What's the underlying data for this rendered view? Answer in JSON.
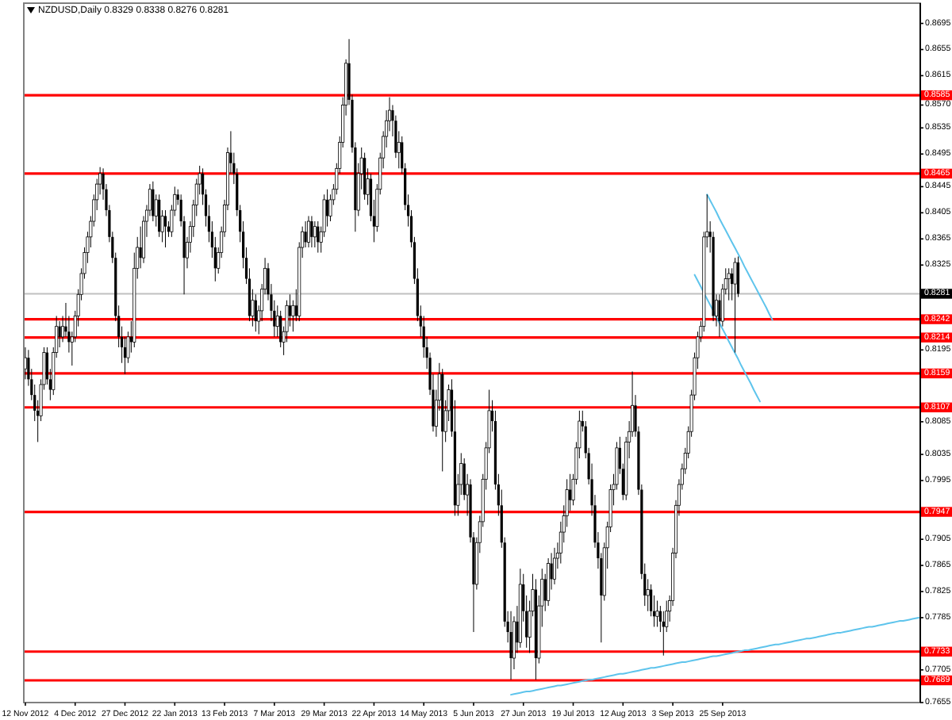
{
  "chart_data": {
    "type": "candlestick",
    "title": "NZDUSD,Daily 0.8329 0.8338 0.8276 0.8281",
    "categories": [
      "12 Nov 2012",
      null,
      null,
      null,
      null,
      null,
      null,
      null,
      null,
      null,
      null,
      null,
      null,
      null,
      null,
      null,
      "4 Dec 2012",
      null,
      null,
      null,
      null,
      null,
      null,
      null,
      null,
      null,
      null,
      null,
      null,
      null,
      null,
      null,
      "27 Dec 2012",
      null,
      null,
      null,
      null,
      null,
      null,
      null,
      null,
      null,
      null,
      null,
      null,
      null,
      null,
      null,
      "22 Jan 2013",
      null,
      null,
      null,
      null,
      null,
      null,
      null,
      null,
      null,
      null,
      null,
      null,
      null,
      null,
      null,
      "13 Feb 2013",
      null,
      null,
      null,
      null,
      null,
      null,
      null,
      null,
      null,
      null,
      null,
      null,
      null,
      null,
      null,
      "7 Mar 2013",
      null,
      null,
      null,
      null,
      null,
      null,
      null,
      null,
      null,
      null,
      null,
      null,
      null,
      null,
      null,
      "29 Mar 2013",
      null,
      null,
      null,
      null,
      null,
      null,
      null,
      null,
      null,
      null,
      null,
      null,
      null,
      null,
      null,
      "22 Apr 2013",
      null,
      null,
      null,
      null,
      null,
      null,
      null,
      null,
      null,
      null,
      null,
      null,
      null,
      null,
      null,
      "14 May 2013",
      null,
      null,
      null,
      null,
      null,
      null,
      null,
      null,
      null,
      null,
      null,
      null,
      null,
      null,
      null,
      "5 Jun 2013",
      null,
      null,
      null,
      null,
      null,
      null,
      null,
      null,
      null,
      null,
      null,
      null,
      null,
      null,
      null,
      "27 Jun 2013",
      null,
      null,
      null,
      null,
      null,
      null,
      null,
      null,
      null,
      null,
      null,
      null,
      null,
      null,
      null,
      "19 Jul 2013",
      null,
      null,
      null,
      null,
      null,
      null,
      null,
      null,
      null,
      null,
      null,
      null,
      null,
      null,
      null,
      "12 Aug 2013",
      null,
      null,
      null,
      null,
      null,
      null,
      null,
      null,
      null,
      null,
      null,
      null,
      null,
      null,
      null,
      "3 Sep 2013",
      null,
      null,
      null,
      null,
      null,
      null,
      null,
      null,
      null,
      null,
      null,
      null,
      null,
      null,
      null,
      "25 Sep 2013",
      null,
      null,
      null,
      null,
      null,
      null,
      null,
      null,
      null,
      null,
      null,
      null,
      null,
      null,
      null,
      null,
      null,
      null,
      null,
      null,
      null,
      null,
      null,
      null,
      null,
      null,
      null,
      null,
      null,
      null,
      null,
      null,
      null,
      null,
      null,
      null,
      null,
      null,
      null,
      null,
      null,
      null,
      null,
      null,
      null,
      null,
      null,
      null,
      null,
      null,
      null,
      null,
      null,
      null,
      null,
      null,
      null,
      null,
      null,
      null,
      null,
      null,
      null
    ],
    "ohlc": [
      [
        0.8166,
        0.8199,
        0.815,
        0.8183
      ],
      [
        0.8183,
        0.8195,
        0.814,
        0.815
      ],
      [
        0.815,
        0.8166,
        0.8118,
        0.8126
      ],
      [
        0.8126,
        0.8142,
        0.8086,
        0.8102
      ],
      [
        0.8102,
        0.8118,
        0.8054,
        0.8094
      ],
      [
        0.8094,
        0.815,
        0.8086,
        0.8142
      ],
      [
        0.8142,
        0.8199,
        0.8134,
        0.8191
      ],
      [
        0.8191,
        0.8199,
        0.8142,
        0.815
      ],
      [
        0.815,
        0.8166,
        0.8118,
        0.8134
      ],
      [
        0.8134,
        0.8199,
        0.8126,
        0.8191
      ],
      [
        0.8191,
        0.8247,
        0.8183,
        0.8231
      ],
      [
        0.8231,
        0.8239,
        0.8199,
        0.8215
      ],
      [
        0.8215,
        0.8247,
        0.8207,
        0.8231
      ],
      [
        0.8231,
        0.8267,
        0.8215,
        0.8223
      ],
      [
        0.8223,
        0.8247,
        0.8191,
        0.8207
      ],
      [
        0.8207,
        0.8223,
        0.8171,
        0.8215
      ],
      [
        0.8215,
        0.8255,
        0.8207,
        0.8247
      ],
      [
        0.8247,
        0.8288,
        0.8231,
        0.828
      ],
      [
        0.828,
        0.832,
        0.8271,
        0.8312
      ],
      [
        0.8312,
        0.8352,
        0.8304,
        0.8344
      ],
      [
        0.8344,
        0.8376,
        0.8328,
        0.8368
      ],
      [
        0.8368,
        0.84,
        0.8352,
        0.8392
      ],
      [
        0.8392,
        0.8433,
        0.8384,
        0.8425
      ],
      [
        0.8425,
        0.8457,
        0.8409,
        0.8449
      ],
      [
        0.8449,
        0.8475,
        0.8433,
        0.8465
      ],
      [
        0.8465,
        0.8473,
        0.8425,
        0.8441
      ],
      [
        0.8441,
        0.8449,
        0.84,
        0.8409
      ],
      [
        0.8409,
        0.8417,
        0.836,
        0.8368
      ],
      [
        0.8368,
        0.8376,
        0.8328,
        0.8336
      ],
      [
        0.8336,
        0.8344,
        0.8239,
        0.8247
      ],
      [
        0.8247,
        0.8263,
        0.8199,
        0.8215
      ],
      [
        0.8215,
        0.8231,
        0.8175,
        0.8199
      ],
      [
        0.8199,
        0.8215,
        0.8158,
        0.8183
      ],
      [
        0.8183,
        0.8223,
        0.8175,
        0.8215
      ],
      [
        0.8215,
        0.8239,
        0.8191,
        0.8207
      ],
      [
        0.8207,
        0.8344,
        0.8199,
        0.832
      ],
      [
        0.832,
        0.8368,
        0.8304,
        0.8352
      ],
      [
        0.8352,
        0.8384,
        0.832,
        0.8336
      ],
      [
        0.8336,
        0.84,
        0.8328,
        0.8392
      ],
      [
        0.8392,
        0.8417,
        0.8368,
        0.8409
      ],
      [
        0.8409,
        0.8449,
        0.84,
        0.8441
      ],
      [
        0.8441,
        0.8453,
        0.8392,
        0.84
      ],
      [
        0.84,
        0.8433,
        0.8384,
        0.8425
      ],
      [
        0.8425,
        0.8433,
        0.8368,
        0.8376
      ],
      [
        0.8376,
        0.8409,
        0.836,
        0.84
      ],
      [
        0.84,
        0.8409,
        0.8352,
        0.8384
      ],
      [
        0.8384,
        0.8392,
        0.8368,
        0.8376
      ],
      [
        0.8376,
        0.8417,
        0.8368,
        0.8409
      ],
      [
        0.8409,
        0.8445,
        0.84,
        0.8433
      ],
      [
        0.8433,
        0.8441,
        0.8417,
        0.8425
      ],
      [
        0.8425,
        0.8433,
        0.8384,
        0.8392
      ],
      [
        0.8392,
        0.84,
        0.828,
        0.8336
      ],
      [
        0.8336,
        0.8368,
        0.832,
        0.836
      ],
      [
        0.836,
        0.8392,
        0.8344,
        0.8384
      ],
      [
        0.8384,
        0.8425,
        0.8368,
        0.8417
      ],
      [
        0.8417,
        0.8457,
        0.84,
        0.8449
      ],
      [
        0.8449,
        0.8477,
        0.8433,
        0.8465
      ],
      [
        0.8465,
        0.8473,
        0.8417,
        0.8433
      ],
      [
        0.8433,
        0.8441,
        0.8384,
        0.84
      ],
      [
        0.84,
        0.8417,
        0.836,
        0.8376
      ],
      [
        0.8376,
        0.8392,
        0.8336,
        0.8352
      ],
      [
        0.8352,
        0.8368,
        0.83,
        0.832
      ],
      [
        0.832,
        0.8352,
        0.8312,
        0.8344
      ],
      [
        0.8344,
        0.8384,
        0.8336,
        0.8376
      ],
      [
        0.8376,
        0.8425,
        0.8368,
        0.8417
      ],
      [
        0.8417,
        0.8505,
        0.8409,
        0.8497
      ],
      [
        0.8497,
        0.853,
        0.8465,
        0.8481
      ],
      [
        0.8481,
        0.8497,
        0.8449,
        0.8465
      ],
      [
        0.8465,
        0.8473,
        0.84,
        0.8409
      ],
      [
        0.8409,
        0.8417,
        0.836,
        0.8376
      ],
      [
        0.8376,
        0.8392,
        0.832,
        0.8336
      ],
      [
        0.8336,
        0.8352,
        0.8296,
        0.8304
      ],
      [
        0.8304,
        0.832,
        0.8239,
        0.8247
      ],
      [
        0.8247,
        0.8288,
        0.8231,
        0.8271
      ],
      [
        0.8271,
        0.828,
        0.8223,
        0.8239
      ],
      [
        0.8239,
        0.8263,
        0.8219,
        0.8255
      ],
      [
        0.8255,
        0.8296,
        0.8239,
        0.8288
      ],
      [
        0.8288,
        0.8336,
        0.828,
        0.832
      ],
      [
        0.832,
        0.8328,
        0.8271,
        0.828
      ],
      [
        0.828,
        0.8296,
        0.8239,
        0.8255
      ],
      [
        0.8255,
        0.8271,
        0.8215,
        0.8231
      ],
      [
        0.8231,
        0.8263,
        0.8215,
        0.8247
      ],
      [
        0.8247,
        0.8255,
        0.8199,
        0.8207
      ],
      [
        0.8207,
        0.8231,
        0.8187,
        0.8223
      ],
      [
        0.8223,
        0.8271,
        0.8207,
        0.8263
      ],
      [
        0.8263,
        0.828,
        0.8231,
        0.8247
      ],
      [
        0.8247,
        0.8271,
        0.8223,
        0.8263
      ],
      [
        0.8263,
        0.8288,
        0.8239,
        0.8247
      ],
      [
        0.8247,
        0.836,
        0.8239,
        0.8352
      ],
      [
        0.8352,
        0.8384,
        0.8336,
        0.8376
      ],
      [
        0.8376,
        0.8392,
        0.8352,
        0.836
      ],
      [
        0.836,
        0.84,
        0.8352,
        0.8392
      ],
      [
        0.8392,
        0.84,
        0.8352,
        0.8368
      ],
      [
        0.8368,
        0.8392,
        0.8352,
        0.8384
      ],
      [
        0.8384,
        0.8392,
        0.8344,
        0.836
      ],
      [
        0.836,
        0.8384,
        0.8344,
        0.8376
      ],
      [
        0.8376,
        0.8433,
        0.8368,
        0.8425
      ],
      [
        0.8425,
        0.8441,
        0.8384,
        0.84
      ],
      [
        0.84,
        0.8433,
        0.8392,
        0.8425
      ],
      [
        0.8425,
        0.8449,
        0.8417,
        0.8441
      ],
      [
        0.8441,
        0.8481,
        0.8433,
        0.8473
      ],
      [
        0.8473,
        0.8522,
        0.8465,
        0.8513
      ],
      [
        0.8513,
        0.8582,
        0.8505,
        0.857
      ],
      [
        0.857,
        0.864,
        0.8554,
        0.8634
      ],
      [
        0.8634,
        0.8671,
        0.857,
        0.8578
      ],
      [
        0.8578,
        0.8586,
        0.8497,
        0.8505
      ],
      [
        0.8505,
        0.8513,
        0.8376,
        0.8409
      ],
      [
        0.8409,
        0.8481,
        0.84,
        0.8465
      ],
      [
        0.8465,
        0.8505,
        0.8441,
        0.8489
      ],
      [
        0.8489,
        0.8497,
        0.8425,
        0.8433
      ],
      [
        0.8433,
        0.8473,
        0.8417,
        0.8457
      ],
      [
        0.8457,
        0.8465,
        0.8392,
        0.84
      ],
      [
        0.84,
        0.8425,
        0.836,
        0.8384
      ],
      [
        0.8384,
        0.8449,
        0.8376,
        0.8441
      ],
      [
        0.8441,
        0.8497,
        0.8433,
        0.8489
      ],
      [
        0.8489,
        0.853,
        0.8473,
        0.8522
      ],
      [
        0.8522,
        0.8562,
        0.8505,
        0.8546
      ],
      [
        0.8546,
        0.8582,
        0.853,
        0.8562
      ],
      [
        0.8562,
        0.857,
        0.8522,
        0.8546
      ],
      [
        0.8546,
        0.8554,
        0.8489,
        0.8497
      ],
      [
        0.8497,
        0.853,
        0.8473,
        0.8513
      ],
      [
        0.8513,
        0.8522,
        0.8465,
        0.8473
      ],
      [
        0.8473,
        0.8481,
        0.8409,
        0.8417
      ],
      [
        0.8417,
        0.8433,
        0.8384,
        0.84
      ],
      [
        0.84,
        0.8409,
        0.8352,
        0.836
      ],
      [
        0.836,
        0.8368,
        0.8296,
        0.8304
      ],
      [
        0.8304,
        0.832,
        0.8239,
        0.8247
      ],
      [
        0.8247,
        0.8263,
        0.8215,
        0.8231
      ],
      [
        0.8231,
        0.8247,
        0.8183,
        0.8199
      ],
      [
        0.8199,
        0.8215,
        0.8166,
        0.8183
      ],
      [
        0.8183,
        0.8191,
        0.8126,
        0.8134
      ],
      [
        0.8134,
        0.8158,
        0.807,
        0.8078
      ],
      [
        0.8078,
        0.8134,
        0.8062,
        0.8118
      ],
      [
        0.8118,
        0.8175,
        0.8102,
        0.8158
      ],
      [
        0.8158,
        0.8166,
        0.8009,
        0.807
      ],
      [
        0.807,
        0.8118,
        0.8054,
        0.8102
      ],
      [
        0.8102,
        0.8142,
        0.8086,
        0.8134
      ],
      [
        0.8134,
        0.815,
        0.8062,
        0.807
      ],
      [
        0.807,
        0.8118,
        0.7941,
        0.7957
      ],
      [
        0.7957,
        0.8005,
        0.7941,
        0.7989
      ],
      [
        0.7989,
        0.8037,
        0.7973,
        0.8021
      ],
      [
        0.8021,
        0.8029,
        0.7965,
        0.7973
      ],
      [
        0.7973,
        0.8005,
        0.7941,
        0.7989
      ],
      [
        0.7989,
        0.7997,
        0.79,
        0.7908
      ],
      [
        0.7908,
        0.7916,
        0.7763,
        0.7836
      ],
      [
        0.7836,
        0.7908,
        0.7828,
        0.79
      ],
      [
        0.79,
        0.7941,
        0.7884,
        0.7932
      ],
      [
        0.7932,
        0.8005,
        0.7924,
        0.7997
      ],
      [
        0.7997,
        0.8054,
        0.7981,
        0.8045
      ],
      [
        0.8045,
        0.8134,
        0.8037,
        0.8102
      ],
      [
        0.8102,
        0.8118,
        0.807,
        0.8086
      ],
      [
        0.8086,
        0.8102,
        0.7981,
        0.7989
      ],
      [
        0.7989,
        0.8005,
        0.7941,
        0.7957
      ],
      [
        0.7957,
        0.7981,
        0.7892,
        0.79
      ],
      [
        0.79,
        0.7908,
        0.7771,
        0.7779
      ],
      [
        0.7779,
        0.7795,
        0.7747,
        0.7763
      ],
      [
        0.7763,
        0.7795,
        0.769,
        0.7723
      ],
      [
        0.7723,
        0.7787,
        0.7706,
        0.7779
      ],
      [
        0.7779,
        0.7803,
        0.7731,
        0.7747
      ],
      [
        0.7747,
        0.786,
        0.7739,
        0.7836
      ],
      [
        0.7836,
        0.7852,
        0.7779,
        0.7795
      ],
      [
        0.7795,
        0.7819,
        0.7739,
        0.7755
      ],
      [
        0.7755,
        0.7811,
        0.7731,
        0.7795
      ],
      [
        0.7795,
        0.7852,
        0.7787,
        0.7828
      ],
      [
        0.7828,
        0.7844,
        0.769,
        0.7723
      ],
      [
        0.7723,
        0.7819,
        0.7715,
        0.7803
      ],
      [
        0.7803,
        0.786,
        0.7771,
        0.7844
      ],
      [
        0.7844,
        0.7852,
        0.7795,
        0.7811
      ],
      [
        0.7811,
        0.7876,
        0.7803,
        0.7868
      ],
      [
        0.7868,
        0.7884,
        0.7828,
        0.7844
      ],
      [
        0.7844,
        0.7892,
        0.7836,
        0.7876
      ],
      [
        0.7876,
        0.79,
        0.786,
        0.7884
      ],
      [
        0.7884,
        0.7932,
        0.7868,
        0.7916
      ],
      [
        0.7916,
        0.7957,
        0.79,
        0.7941
      ],
      [
        0.7941,
        0.7997,
        0.7924,
        0.7981
      ],
      [
        0.7981,
        0.8005,
        0.7949,
        0.7965
      ],
      [
        0.7965,
        0.8005,
        0.7957,
        0.7997
      ],
      [
        0.7997,
        0.8054,
        0.7989,
        0.8045
      ],
      [
        0.8045,
        0.8102,
        0.8029,
        0.8086
      ],
      [
        0.8086,
        0.8102,
        0.807,
        0.8078
      ],
      [
        0.8078,
        0.8086,
        0.8029,
        0.8037
      ],
      [
        0.8037,
        0.8045,
        0.7989,
        0.7997
      ],
      [
        0.7997,
        0.8021,
        0.7941,
        0.7957
      ],
      [
        0.7957,
        0.7973,
        0.7892,
        0.79
      ],
      [
        0.79,
        0.7916,
        0.786,
        0.7876
      ],
      [
        0.7876,
        0.7884,
        0.7747,
        0.7819
      ],
      [
        0.7819,
        0.79,
        0.7811,
        0.7892
      ],
      [
        0.7892,
        0.7932,
        0.786,
        0.7924
      ],
      [
        0.7924,
        0.7989,
        0.7916,
        0.7981
      ],
      [
        0.7981,
        0.8005,
        0.7957,
        0.7989
      ],
      [
        0.7989,
        0.8054,
        0.7981,
        0.8045
      ],
      [
        0.8045,
        0.8062,
        0.8005,
        0.8013
      ],
      [
        0.8013,
        0.8021,
        0.7965,
        0.7973
      ],
      [
        0.7973,
        0.8062,
        0.7965,
        0.8054
      ],
      [
        0.8054,
        0.8086,
        0.8029,
        0.807
      ],
      [
        0.807,
        0.8162,
        0.8062,
        0.811
      ],
      [
        0.811,
        0.8126,
        0.8062,
        0.807
      ],
      [
        0.807,
        0.8078,
        0.7973,
        0.7981
      ],
      [
        0.7981,
        0.7989,
        0.7844,
        0.7852
      ],
      [
        0.7852,
        0.7868,
        0.7803,
        0.7819
      ],
      [
        0.7819,
        0.7844,
        0.7795,
        0.7828
      ],
      [
        0.7828,
        0.7836,
        0.7787,
        0.7795
      ],
      [
        0.7795,
        0.7819,
        0.7771,
        0.7787
      ],
      [
        0.7787,
        0.7811,
        0.7771,
        0.7795
      ],
      [
        0.7795,
        0.7803,
        0.7763,
        0.7779
      ],
      [
        0.7779,
        0.7795,
        0.7727,
        0.7771
      ],
      [
        0.7771,
        0.7811,
        0.7763,
        0.7795
      ],
      [
        0.7795,
        0.7819,
        0.7779,
        0.7811
      ],
      [
        0.7811,
        0.7892,
        0.7803,
        0.7884
      ],
      [
        0.7884,
        0.7965,
        0.7876,
        0.7957
      ],
      [
        0.7957,
        0.7997,
        0.7941,
        0.7989
      ],
      [
        0.7989,
        0.8021,
        0.7981,
        0.8013
      ],
      [
        0.8013,
        0.8045,
        0.8005,
        0.8037
      ],
      [
        0.8037,
        0.8078,
        0.8029,
        0.807
      ],
      [
        0.807,
        0.8134,
        0.8062,
        0.8126
      ],
      [
        0.8126,
        0.8191,
        0.8118,
        0.8183
      ],
      [
        0.8183,
        0.8223,
        0.8166,
        0.8215
      ],
      [
        0.8215,
        0.8239,
        0.8207,
        0.8231
      ],
      [
        0.8231,
        0.8376,
        0.8223,
        0.8368
      ],
      [
        0.8368,
        0.8433,
        0.8352,
        0.8376
      ],
      [
        0.8376,
        0.8392,
        0.8344,
        0.8368
      ],
      [
        0.8368,
        0.8376,
        0.8239,
        0.8247
      ],
      [
        0.8247,
        0.828,
        0.8231,
        0.8271
      ],
      [
        0.8271,
        0.828,
        0.8215,
        0.8239
      ],
      [
        0.8239,
        0.8296,
        0.8231,
        0.8288
      ],
      [
        0.8288,
        0.832,
        0.828,
        0.8304
      ],
      [
        0.8304,
        0.832,
        0.8271,
        0.8312
      ],
      [
        0.8312,
        0.832,
        0.8271,
        0.8296
      ],
      [
        0.8296,
        0.8336,
        0.8191,
        0.8329
      ],
      [
        0.8329,
        0.8338,
        0.8276,
        0.8281
      ],
      null,
      null,
      null,
      null,
      null,
      null,
      null,
      null,
      null,
      null,
      null,
      null,
      null,
      null,
      null,
      null,
      null,
      null,
      null,
      null,
      null,
      null,
      null,
      null,
      null,
      null,
      null,
      null,
      null,
      null,
      null,
      null,
      null,
      null,
      null,
      null,
      null,
      null,
      null,
      null,
      null,
      null,
      null,
      null,
      null,
      null,
      null,
      null,
      null,
      null,
      null,
      null,
      null,
      null,
      null,
      null,
      null,
      null
    ],
    "ylim": [
      0.7655,
      0.8726
    ],
    "yticks": [
      0.7655,
      0.7705,
      0.7785,
      0.7825,
      0.7865,
      0.7905,
      0.7995,
      0.8035,
      0.8085,
      0.8195,
      0.8325,
      0.8365,
      0.8405,
      0.8445,
      0.8495,
      0.8535,
      {
        "value": 0.857,
        "label": "0.8570"
      },
      0.8615,
      0.8655,
      0.8695
    ],
    "ref_lines": [
      {
        "axis": "y",
        "value": 0.8585,
        "label": "0.8585",
        "color": "#ff0000"
      },
      {
        "axis": "y",
        "value": 0.8465,
        "label": "0.8465",
        "color": "#ff0000"
      },
      {
        "axis": "y",
        "value": 0.8281,
        "label": "0.8281",
        "color": "#c0c0c0"
      },
      {
        "axis": "y",
        "value": 0.8242,
        "label": "0.8242",
        "color": "#ff0000"
      },
      {
        "axis": "y",
        "value": 0.8214,
        "label": "0.8214",
        "color": "#ff0000"
      },
      {
        "axis": "y",
        "value": 0.8159,
        "label": "0.8159",
        "color": "#ff0000"
      },
      {
        "axis": "y",
        "value": 0.8107,
        "label": "0.8107",
        "color": "#ff0000"
      },
      {
        "axis": "y",
        "value": 0.7947,
        "label": "0.7947",
        "color": "#ff0000"
      },
      {
        "axis": "y",
        "value": 0.7733,
        "label": "0.7733",
        "color": "#ff0000"
      },
      {
        "axis": "y",
        "value": 0.7689,
        "label": "0.7689",
        "color": "#ff0000"
      }
    ],
    "series": [
      {
        "type": "line",
        "color": "#5ec4ec",
        "values": [
          null,
          null,
          null,
          null,
          null,
          null,
          null,
          null,
          null,
          null,
          null,
          null,
          null,
          null,
          null,
          null,
          null,
          null,
          null,
          null,
          null,
          null,
          null,
          null,
          null,
          null,
          null,
          null,
          null,
          null,
          null,
          null,
          null,
          null,
          null,
          null,
          null,
          null,
          null,
          null,
          null,
          null,
          null,
          null,
          null,
          null,
          null,
          null,
          null,
          null,
          null,
          null,
          null,
          null,
          null,
          null,
          null,
          null,
          null,
          null,
          null,
          null,
          null,
          null,
          null,
          null,
          null,
          null,
          null,
          null,
          null,
          null,
          null,
          null,
          null,
          null,
          null,
          null,
          null,
          null,
          null,
          null,
          null,
          null,
          null,
          null,
          null,
          null,
          null,
          null,
          null,
          null,
          null,
          null,
          null,
          null,
          null,
          null,
          null,
          null,
          null,
          null,
          null,
          null,
          null,
          null,
          null,
          null,
          null,
          null,
          null,
          null,
          null,
          null,
          null,
          null,
          null,
          null,
          null,
          null,
          null,
          null,
          null,
          null,
          null,
          null,
          null,
          null,
          null,
          null,
          null,
          null,
          null,
          null,
          null,
          null,
          null,
          null,
          null,
          null,
          null,
          null,
          null,
          null,
          null,
          null,
          null,
          null,
          null,
          null,
          null,
          null,
          null,
          null,
          null,
          null,
          0.7667,
          0.7668,
          0.7669,
          0.767,
          0.7671,
          0.7672,
          0.7672,
          0.7673,
          0.7674,
          0.7675,
          0.7676,
          0.7677,
          0.7678,
          0.7679,
          0.768,
          0.7681,
          0.7681,
          0.7682,
          0.7683,
          0.7684,
          0.7685,
          0.7686,
          0.7687,
          0.7688,
          0.7689,
          0.769,
          0.769,
          0.7691,
          0.7692,
          0.7693,
          0.7694,
          0.7695,
          0.7696,
          0.7697,
          0.7698,
          0.7699,
          0.7699,
          0.77,
          0.7701,
          0.7702,
          0.7703,
          0.7704,
          0.7705,
          0.7706,
          0.7707,
          0.7708,
          0.7708,
          0.7709,
          0.771,
          0.7711,
          0.7712,
          0.7713,
          0.7714,
          0.7715,
          0.7716,
          0.7717,
          0.7717,
          0.7718,
          0.7719,
          0.772,
          0.7721,
          0.7722,
          0.7723,
          0.7724,
          0.7725,
          0.7726,
          0.7726,
          0.7727,
          0.7728,
          0.7729,
          0.773,
          0.7731,
          0.7732,
          0.7733,
          0.7734,
          0.7735,
          0.7735,
          0.7736,
          0.7737,
          0.7738,
          0.7739,
          0.774,
          0.7741,
          0.7742,
          0.7743,
          0.7744,
          0.7744,
          0.7745,
          0.7746,
          0.7747,
          0.7748,
          0.7749,
          0.775,
          0.7751,
          0.7752,
          0.7753,
          0.7753,
          0.7754,
          0.7755,
          0.7756,
          0.7757,
          0.7758,
          0.7759,
          0.776,
          0.7761,
          0.7762,
          0.7762,
          0.7763,
          0.7764,
          0.7765,
          0.7766,
          0.7767,
          0.7768,
          0.7769,
          0.777,
          0.7771,
          0.7771,
          0.7772,
          0.7773,
          0.7774,
          0.7775,
          0.7776,
          0.7777,
          0.7778,
          0.7779,
          0.778,
          0.778,
          0.7781,
          0.7782,
          0.7783,
          0.7784,
          0.7785
        ]
      },
      {
        "type": "line",
        "color": "#5ec4ec",
        "values": [
          null,
          null,
          null,
          null,
          null,
          null,
          null,
          null,
          null,
          null,
          null,
          null,
          null,
          null,
          null,
          null,
          null,
          null,
          null,
          null,
          null,
          null,
          null,
          null,
          null,
          null,
          null,
          null,
          null,
          null,
          null,
          null,
          null,
          null,
          null,
          null,
          null,
          null,
          null,
          null,
          null,
          null,
          null,
          null,
          null,
          null,
          null,
          null,
          null,
          null,
          null,
          null,
          null,
          null,
          null,
          null,
          null,
          null,
          null,
          null,
          null,
          null,
          null,
          null,
          null,
          null,
          null,
          null,
          null,
          null,
          null,
          null,
          null,
          null,
          null,
          null,
          null,
          null,
          null,
          null,
          null,
          null,
          null,
          null,
          null,
          null,
          null,
          null,
          null,
          null,
          null,
          null,
          null,
          null,
          null,
          null,
          null,
          null,
          null,
          null,
          null,
          null,
          null,
          null,
          null,
          null,
          null,
          null,
          null,
          null,
          null,
          null,
          null,
          null,
          null,
          null,
          null,
          null,
          null,
          null,
          null,
          null,
          null,
          null,
          null,
          null,
          null,
          null,
          null,
          null,
          null,
          null,
          null,
          null,
          null,
          null,
          null,
          null,
          null,
          null,
          null,
          null,
          null,
          null,
          null,
          null,
          null,
          null,
          null,
          null,
          null,
          null,
          null,
          null,
          null,
          null,
          null,
          null,
          null,
          null,
          null,
          null,
          null,
          null,
          null,
          null,
          null,
          null,
          null,
          null,
          null,
          null,
          null,
          null,
          null,
          null,
          null,
          null,
          null,
          null,
          null,
          null,
          null,
          null,
          null,
          null,
          null,
          null,
          null,
          null,
          null,
          null,
          null,
          null,
          null,
          null,
          null,
          null,
          null,
          null,
          null,
          null,
          null,
          null,
          null,
          null,
          null,
          null,
          null,
          null,
          null,
          null,
          null,
          null,
          null,
          null,
          null,
          null,
          null,
          0.8433,
          0.8424,
          0.8415,
          0.8406,
          0.8396,
          0.8387,
          0.8378,
          0.8369,
          0.836,
          0.8351,
          0.8342,
          0.8333,
          0.8323,
          0.8314,
          0.8305,
          0.8296,
          0.8287,
          0.8278,
          0.8269,
          0.826,
          0.825,
          0.8241,
          null,
          null,
          null,
          null,
          null,
          null,
          null,
          null,
          null,
          null,
          null,
          null,
          null,
          null,
          null,
          null,
          null,
          null,
          null,
          null,
          null,
          null,
          null,
          null,
          null,
          null,
          null,
          null,
          null,
          null,
          null,
          null,
          null,
          null,
          null,
          null,
          null,
          null,
          null,
          null,
          null,
          null,
          null,
          null,
          null,
          null,
          null
        ]
      },
      {
        "type": "line",
        "color": "#5ec4ec",
        "values": [
          null,
          null,
          null,
          null,
          null,
          null,
          null,
          null,
          null,
          null,
          null,
          null,
          null,
          null,
          null,
          null,
          null,
          null,
          null,
          null,
          null,
          null,
          null,
          null,
          null,
          null,
          null,
          null,
          null,
          null,
          null,
          null,
          null,
          null,
          null,
          null,
          null,
          null,
          null,
          null,
          null,
          null,
          null,
          null,
          null,
          null,
          null,
          null,
          null,
          null,
          null,
          null,
          null,
          null,
          null,
          null,
          null,
          null,
          null,
          null,
          null,
          null,
          null,
          null,
          null,
          null,
          null,
          null,
          null,
          null,
          null,
          null,
          null,
          null,
          null,
          null,
          null,
          null,
          null,
          null,
          null,
          null,
          null,
          null,
          null,
          null,
          null,
          null,
          null,
          null,
          null,
          null,
          null,
          null,
          null,
          null,
          null,
          null,
          null,
          null,
          null,
          null,
          null,
          null,
          null,
          null,
          null,
          null,
          null,
          null,
          null,
          null,
          null,
          null,
          null,
          null,
          null,
          null,
          null,
          null,
          null,
          null,
          null,
          null,
          null,
          null,
          null,
          null,
          null,
          null,
          null,
          null,
          null,
          null,
          null,
          null,
          null,
          null,
          null,
          null,
          null,
          null,
          null,
          null,
          null,
          null,
          null,
          null,
          null,
          null,
          null,
          null,
          null,
          null,
          null,
          null,
          null,
          null,
          null,
          null,
          null,
          null,
          null,
          null,
          null,
          null,
          null,
          null,
          null,
          null,
          null,
          null,
          null,
          null,
          null,
          null,
          null,
          null,
          null,
          null,
          null,
          null,
          null,
          null,
          null,
          null,
          null,
          null,
          null,
          null,
          null,
          null,
          null,
          null,
          null,
          null,
          null,
          null,
          null,
          null,
          null,
          null,
          null,
          null,
          null,
          null,
          null,
          null,
          null,
          null,
          null,
          null,
          null,
          null,
          null,
          0.831,
          0.8301,
          0.8292,
          0.8282,
          0.8273,
          0.8264,
          0.8255,
          0.8245,
          0.8236,
          0.8227,
          0.8218,
          0.8208,
          0.8199,
          0.819,
          0.8181,
          0.8171,
          0.8162,
          0.8153,
          0.8144,
          0.8134,
          0.8125,
          0.8116,
          null,
          null,
          null,
          null,
          null,
          null,
          null,
          null,
          null,
          null,
          null,
          null,
          null,
          null,
          null,
          null,
          null,
          null,
          null,
          null,
          null,
          null,
          null,
          null,
          null,
          null,
          null,
          null,
          null,
          null,
          null,
          null,
          null,
          null,
          null,
          null,
          null,
          null,
          null,
          null,
          null,
          null,
          null,
          null,
          null,
          null,
          null,
          null,
          null,
          null,
          null
        ]
      }
    ]
  }
}
